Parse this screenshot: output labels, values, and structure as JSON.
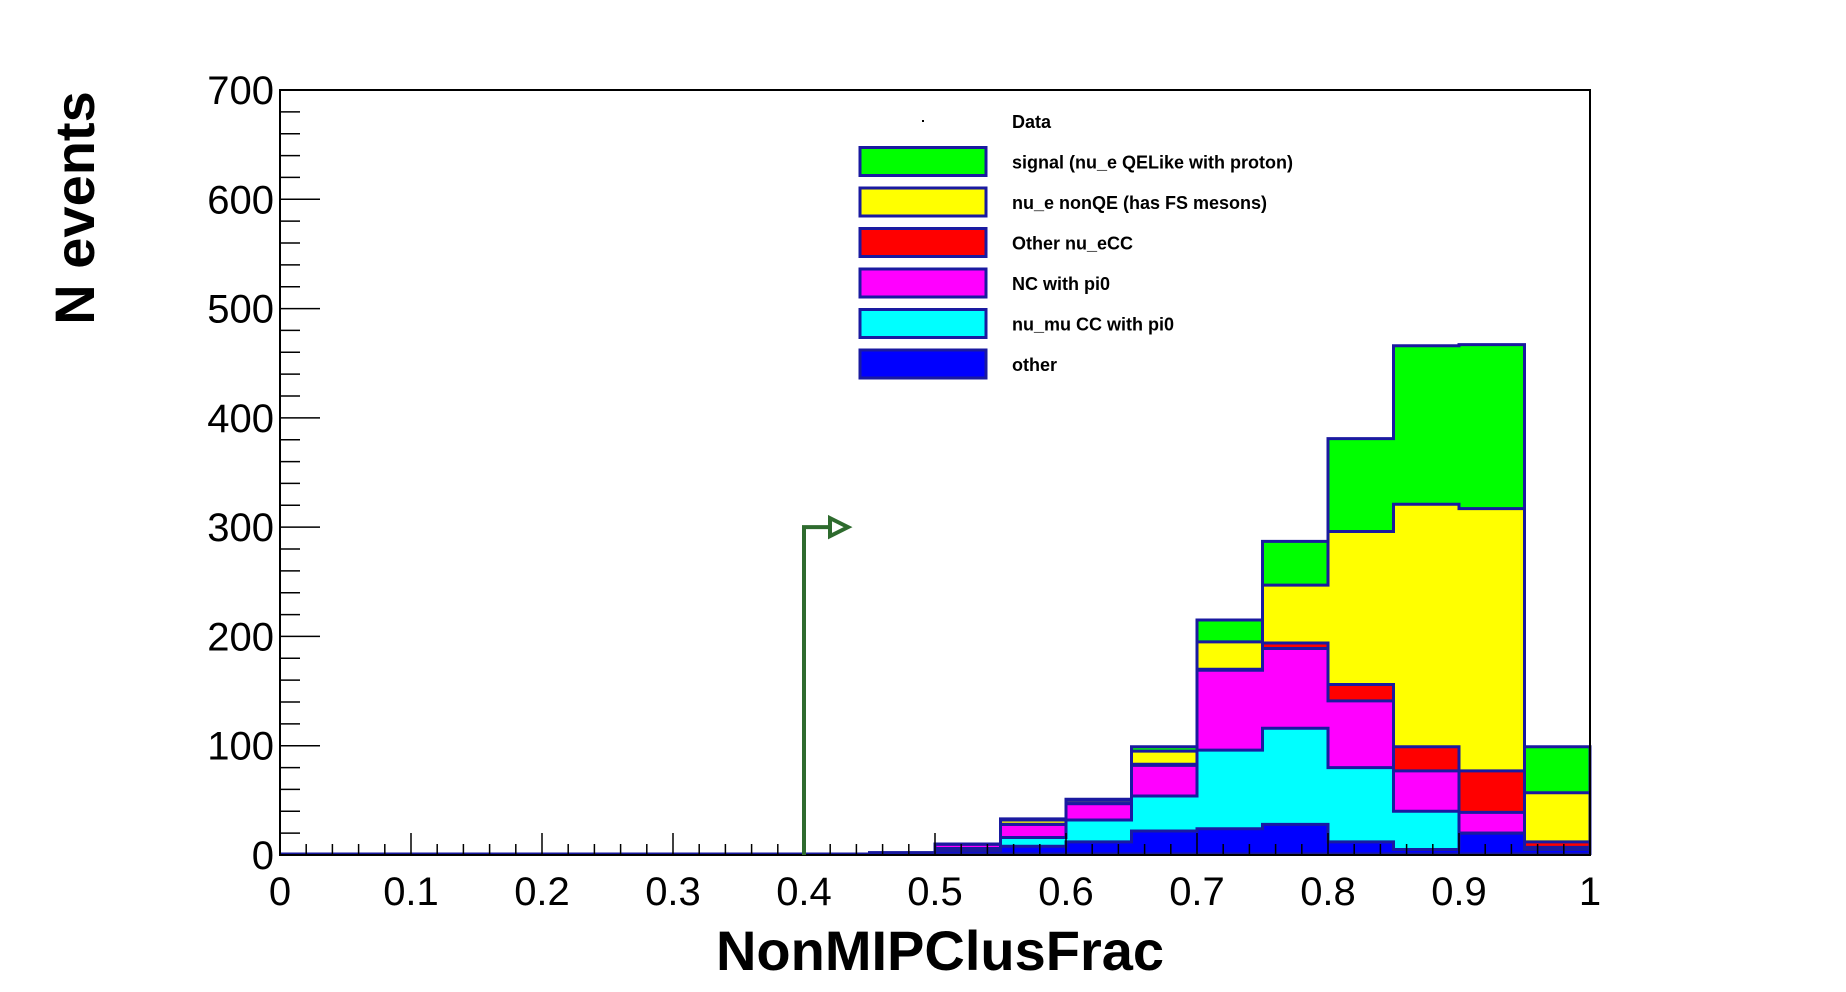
{
  "chart_data": {
    "type": "bar",
    "stacked": true,
    "title": "",
    "xlabel": "NonMIPClusFrac",
    "ylabel": "N events",
    "xlim": [
      0,
      1
    ],
    "ylim": [
      0,
      700
    ],
    "x_ticks": [
      0,
      0.1,
      0.2,
      0.3,
      0.4,
      0.5,
      0.6,
      0.7,
      0.8,
      0.9,
      1
    ],
    "x_tick_labels": [
      "0",
      "0.1",
      "0.2",
      "0.3",
      "0.4",
      "0.5",
      "0.6",
      "0.7",
      "0.8",
      "0.9",
      "1"
    ],
    "y_ticks": [
      0,
      100,
      200,
      300,
      400,
      500,
      600,
      700
    ],
    "y_tick_labels": [
      "0",
      "100",
      "200",
      "300",
      "400",
      "500",
      "600",
      "700"
    ],
    "bin_edges": [
      0.45,
      0.5,
      0.55,
      0.6,
      0.65,
      0.7,
      0.75,
      0.8,
      0.85,
      0.9,
      0.95,
      1.0
    ],
    "series": [
      {
        "name": "other",
        "color": "#0000ff",
        "values": [
          2,
          4,
          8,
          12,
          22,
          24,
          28,
          12,
          5,
          20,
          5
        ]
      },
      {
        "name": "nu_mu CC with pi0",
        "color": "#00ffff",
        "values": [
          0,
          2,
          8,
          20,
          32,
          72,
          88,
          68,
          35,
          0,
          0
        ]
      },
      {
        "name": "NC with pi0",
        "color": "#ff00ff",
        "values": [
          0,
          4,
          12,
          15,
          28,
          73,
          73,
          61,
          37,
          19,
          2
        ]
      },
      {
        "name": "Other nu_eCC",
        "color": "#ff0000",
        "values": [
          0,
          0,
          0,
          0,
          1,
          1,
          5,
          15,
          22,
          38,
          5
        ]
      },
      {
        "name": "nu_e nonQE (has FS mesons)",
        "color": "#ffff00",
        "values": [
          0,
          0,
          4,
          3,
          12,
          25,
          53,
          140,
          222,
          240,
          45
        ]
      },
      {
        "name": "signal (nu_e QELike with proton)",
        "color": "#00ff00",
        "values": [
          0,
          0,
          1,
          1,
          4,
          20,
          40,
          85,
          145,
          150,
          42
        ]
      }
    ],
    "legend": {
      "position": "top-right",
      "entries": [
        {
          "label": "Data",
          "color": "#000000",
          "style": "marker"
        },
        {
          "label": "signal (nu_e QELike with proton)",
          "color": "#00ff00",
          "style": "box"
        },
        {
          "label": "nu_e nonQE (has FS mesons)",
          "color": "#ffff00",
          "style": "box"
        },
        {
          "label": "Other nu_eCC",
          "color": "#ff0000",
          "style": "box"
        },
        {
          "label": "NC with pi0",
          "color": "#ff00ff",
          "style": "box"
        },
        {
          "label": "nu_mu CC with pi0",
          "color": "#00ffff",
          "style": "box"
        },
        {
          "label": "other",
          "color": "#0000ff",
          "style": "box"
        }
      ]
    },
    "annotations": [
      {
        "type": "cut-arrow",
        "x": 0.4,
        "y": 300,
        "direction": "right",
        "color": "#2e6b2e"
      }
    ],
    "outline_color": "#1a1aa0"
  }
}
